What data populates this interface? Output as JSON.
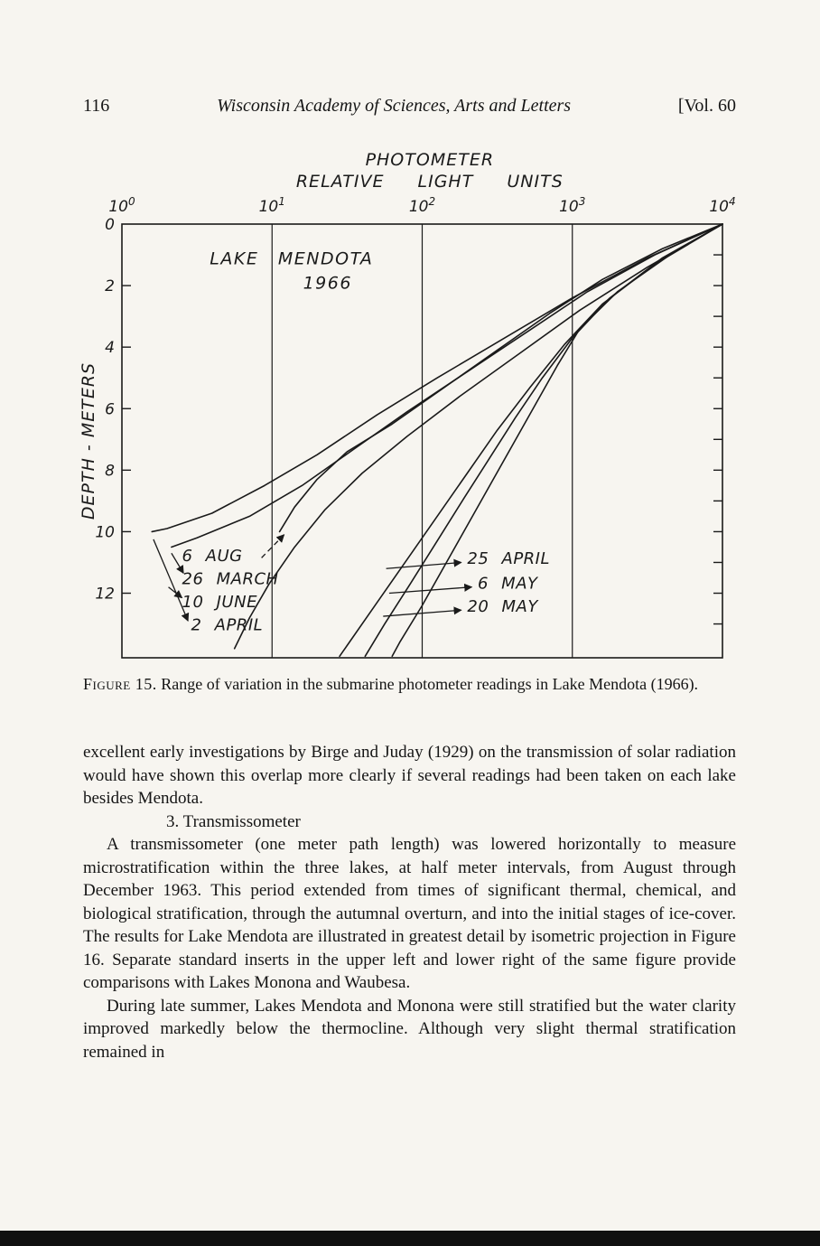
{
  "header": {
    "page_number": "116",
    "journal_title": "Wisconsin Academy of Sciences, Arts and Letters",
    "volume": "[Vol. 60"
  },
  "figure_caption": {
    "label": "Figure 15.",
    "text": "Range of variation in the submarine photometer readings in Lake Mendota (1966)."
  },
  "body": {
    "para1": "excellent early investigations by Birge and Juday (1929) on the transmission of solar radiation would have shown this overlap more clearly if several readings had been taken on each lake besides Mendota.",
    "section_heading": "3. Transmissometer",
    "para2": "A transmissometer (one meter path length) was lowered horizontally to measure microstratification within the three lakes, at half meter intervals, from August through December 1963. This period extended from times of significant thermal, chemical, and biological stratification, through the autumnal overturn, and into the initial stages of ice-cover. The results for Lake Mendota are illustrated in greatest detail by isometric projection in Figure 16. Separate standard inserts in the upper left and lower right of the same figure provide comparisons with Lakes Monona and Waubesa.",
    "para3": "During late summer, Lakes Mendota and Monona were still stratified but the water clarity improved markedly below the thermocline. Although very slight thermal stratification remained in"
  },
  "chart_data": {
    "type": "line",
    "title_line1": "PHOTOMETER",
    "title_line2": "RELATIVE LIGHT UNITS",
    "inner_label": "LAKE MENDOTA",
    "inner_sublabel": "1966",
    "ylabel": "DEPTH - METERS",
    "x_axis": {
      "scale": "log10",
      "tick_base": "10",
      "tick_exponents": [
        "0",
        "1",
        "2",
        "3",
        "4"
      ],
      "tick_values_log": [
        0,
        1,
        2,
        3,
        4
      ],
      "range_log": [
        0,
        4
      ]
    },
    "y_axis": {
      "tick_values": [
        0,
        2,
        4,
        6,
        8,
        10,
        12
      ],
      "range": [
        0,
        14.1
      ],
      "minor_tick_step": 1
    },
    "gridlines_x_log": [
      1,
      2,
      3
    ],
    "legend_position": "none",
    "series": [
      {
        "name": "6 AUG",
        "points": [
          [
            4.0,
            0
          ],
          [
            3.6,
            0.8
          ],
          [
            3.2,
            1.8
          ],
          [
            2.85,
            2.9
          ],
          [
            2.5,
            4.1
          ],
          [
            2.15,
            5.3
          ],
          [
            1.8,
            6.5
          ],
          [
            1.5,
            7.4
          ],
          [
            1.3,
            8.3
          ],
          [
            1.15,
            9.2
          ],
          [
            1.05,
            10.0
          ]
        ]
      },
      {
        "name": "26 MARCH",
        "points": [
          [
            4.0,
            0
          ],
          [
            3.55,
            1.0
          ],
          [
            3.1,
            2.2
          ],
          [
            2.7,
            3.5
          ],
          [
            2.3,
            4.8
          ],
          [
            1.9,
            6.1
          ],
          [
            1.55,
            7.3
          ],
          [
            1.2,
            8.5
          ],
          [
            0.85,
            9.5
          ],
          [
            0.5,
            10.2
          ],
          [
            0.33,
            10.5
          ]
        ]
      },
      {
        "name": "10 JUNE",
        "points": [
          [
            4.0,
            0
          ],
          [
            3.5,
            1.4
          ],
          [
            3.05,
            2.8
          ],
          [
            2.65,
            4.2
          ],
          [
            2.25,
            5.6
          ],
          [
            1.9,
            6.9
          ],
          [
            1.6,
            8.1
          ],
          [
            1.35,
            9.3
          ],
          [
            1.15,
            10.5
          ],
          [
            0.98,
            11.7
          ],
          [
            0.85,
            12.8
          ],
          [
            0.75,
            13.8
          ]
        ]
      },
      {
        "name": "2 APRIL",
        "points": [
          [
            4.0,
            0
          ],
          [
            3.5,
            1.1
          ],
          [
            3.0,
            2.4
          ],
          [
            2.55,
            3.7
          ],
          [
            2.1,
            5.0
          ],
          [
            1.7,
            6.2
          ],
          [
            1.3,
            7.5
          ],
          [
            0.95,
            8.5
          ],
          [
            0.6,
            9.4
          ],
          [
            0.3,
            9.9
          ],
          [
            0.2,
            10.0
          ]
        ]
      },
      {
        "name": "25 APRIL",
        "points": [
          [
            4.0,
            0
          ],
          [
            3.65,
            1.0
          ],
          [
            3.3,
            2.2
          ],
          [
            3.05,
            3.4
          ],
          [
            2.9,
            4.6
          ],
          [
            2.75,
            5.9
          ],
          [
            2.6,
            7.2
          ],
          [
            2.45,
            8.5
          ],
          [
            2.3,
            9.8
          ],
          [
            2.15,
            11.1
          ],
          [
            2.0,
            12.4
          ],
          [
            1.85,
            13.6
          ],
          [
            1.8,
            14.05
          ]
        ]
      },
      {
        "name": "6 MAY",
        "points": [
          [
            4.0,
            0
          ],
          [
            3.6,
            1.1
          ],
          [
            3.25,
            2.4
          ],
          [
            3.0,
            3.7
          ],
          [
            2.8,
            5.0
          ],
          [
            2.62,
            6.3
          ],
          [
            2.45,
            7.6
          ],
          [
            2.28,
            8.9
          ],
          [
            2.1,
            10.3
          ],
          [
            1.92,
            11.7
          ],
          [
            1.75,
            13.0
          ],
          [
            1.62,
            14.05
          ]
        ]
      },
      {
        "name": "20 MAY",
        "points": [
          [
            4.0,
            0
          ],
          [
            3.55,
            1.3
          ],
          [
            3.2,
            2.6
          ],
          [
            2.95,
            3.9
          ],
          [
            2.72,
            5.3
          ],
          [
            2.5,
            6.7
          ],
          [
            2.3,
            8.1
          ],
          [
            2.1,
            9.5
          ],
          [
            1.9,
            10.9
          ],
          [
            1.7,
            12.3
          ],
          [
            1.5,
            13.7
          ],
          [
            1.45,
            14.05
          ]
        ]
      }
    ],
    "annotations": [
      {
        "text": "6 AUG",
        "label": [
          0.4,
          10.95
        ],
        "arrow_from": [
          0.93,
          10.85
        ],
        "arrow_to": [
          1.08,
          10.1
        ],
        "dashed": true
      },
      {
        "text": "26 MARCH",
        "label": [
          0.4,
          11.7
        ],
        "arrow_from": [
          0.33,
          10.7
        ],
        "arrow_to": [
          0.41,
          11.35
        ],
        "dashed": false
      },
      {
        "text": "10 JUNE",
        "label": [
          0.4,
          12.45
        ],
        "arrow_from": [
          0.31,
          11.8
        ],
        "arrow_to": [
          0.4,
          12.15
        ],
        "dashed": false
      },
      {
        "text": "2 APRIL",
        "label": [
          0.46,
          13.2
        ],
        "arrow_from": [
          0.21,
          10.25
        ],
        "arrow_to": [
          0.44,
          12.9
        ],
        "dashed": false
      },
      {
        "text": "25 APRIL",
        "label": [
          2.3,
          11.05
        ],
        "arrow_from": [
          1.76,
          11.2
        ],
        "arrow_to": [
          2.26,
          11.0
        ],
        "dashed": false
      },
      {
        "text": "6 MAY",
        "label": [
          2.37,
          11.85
        ],
        "arrow_from": [
          1.78,
          12.0
        ],
        "arrow_to": [
          2.33,
          11.8
        ],
        "dashed": false
      },
      {
        "text": "20 MAY",
        "label": [
          2.3,
          12.6
        ],
        "arrow_from": [
          1.74,
          12.75
        ],
        "arrow_to": [
          2.26,
          12.55
        ],
        "dashed": false
      }
    ]
  }
}
